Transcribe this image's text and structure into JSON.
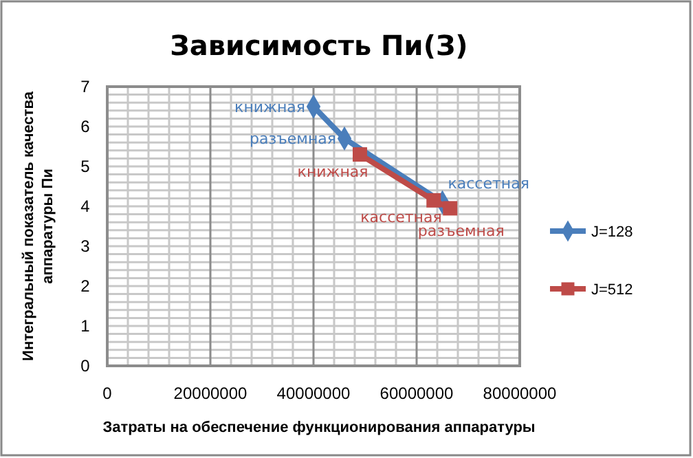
{
  "chart_data": {
    "type": "line",
    "title": "Зависимость Пи(З)",
    "xlabel": "Затраты  на обеспечение  функционирования   аппаратуры",
    "ylabel": "Интегральный показатель качества аппаратуры Пи",
    "xlim": [
      0,
      80000000
    ],
    "xticks": [
      0,
      20000000,
      40000000,
      60000000,
      80000000
    ],
    "ylim": [
      0,
      7
    ],
    "yticks": [
      0,
      1,
      2,
      3,
      4,
      5,
      6,
      7
    ],
    "grid": true,
    "legend": "right",
    "series": [
      {
        "name": "J=128",
        "color": "#4a7ebb",
        "marker": "diamond",
        "x": [
          40000000,
          46000000,
          65000000
        ],
        "values": [
          6.5,
          5.7,
          4.1
        ],
        "value_labels": [
          "книжная",
          "разъемная",
          "кассетная"
        ]
      },
      {
        "name": "J=512",
        "color": "#be4b48",
        "marker": "square",
        "x": [
          49000000,
          63300000,
          66500000
        ],
        "values": [
          5.3,
          4.15,
          3.95
        ],
        "value_labels": [
          "книжная",
          "кассетная",
          "разъемная"
        ]
      }
    ]
  }
}
